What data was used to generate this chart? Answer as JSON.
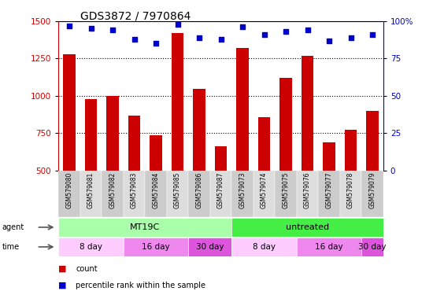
{
  "title": "GDS3872 / 7970864",
  "samples": [
    "GSM579080",
    "GSM579081",
    "GSM579082",
    "GSM579083",
    "GSM579084",
    "GSM579085",
    "GSM579086",
    "GSM579087",
    "GSM579073",
    "GSM579074",
    "GSM579075",
    "GSM579076",
    "GSM579077",
    "GSM579078",
    "GSM579079"
  ],
  "counts": [
    1280,
    980,
    1000,
    870,
    735,
    1420,
    1045,
    665,
    1320,
    855,
    1120,
    1270,
    690,
    775,
    900
  ],
  "percentiles": [
    97,
    95,
    94,
    88,
    85,
    98,
    89,
    88,
    96,
    91,
    93,
    94,
    87,
    89,
    91
  ],
  "ylim_left": [
    500,
    1500
  ],
  "ylim_right": [
    0,
    100
  ],
  "yticks_left": [
    500,
    750,
    1000,
    1250,
    1500
  ],
  "yticks_right": [
    0,
    25,
    50,
    75,
    100
  ],
  "bar_color": "#cc0000",
  "dot_color": "#0000cc",
  "agent_groups": [
    {
      "label": "MT19C",
      "start": 0,
      "end": 8,
      "color": "#aaffaa"
    },
    {
      "label": "untreated",
      "start": 8,
      "end": 15,
      "color": "#44ee44"
    }
  ],
  "time_groups": [
    {
      "label": "8 day",
      "start": 0,
      "end": 3,
      "color": "#ffccff"
    },
    {
      "label": "16 day",
      "start": 3,
      "end": 6,
      "color": "#ee88ee"
    },
    {
      "label": "30 day",
      "start": 6,
      "end": 8,
      "color": "#dd55dd"
    },
    {
      "label": "8 day",
      "start": 8,
      "end": 11,
      "color": "#ffccff"
    },
    {
      "label": "16 day",
      "start": 11,
      "end": 14,
      "color": "#ee88ee"
    },
    {
      "label": "30 day",
      "start": 14,
      "end": 15,
      "color": "#dd55dd"
    }
  ],
  "background_color": "#ffffff",
  "title_fontsize": 10,
  "tick_fontsize": 7.5,
  "bar_width": 0.55
}
